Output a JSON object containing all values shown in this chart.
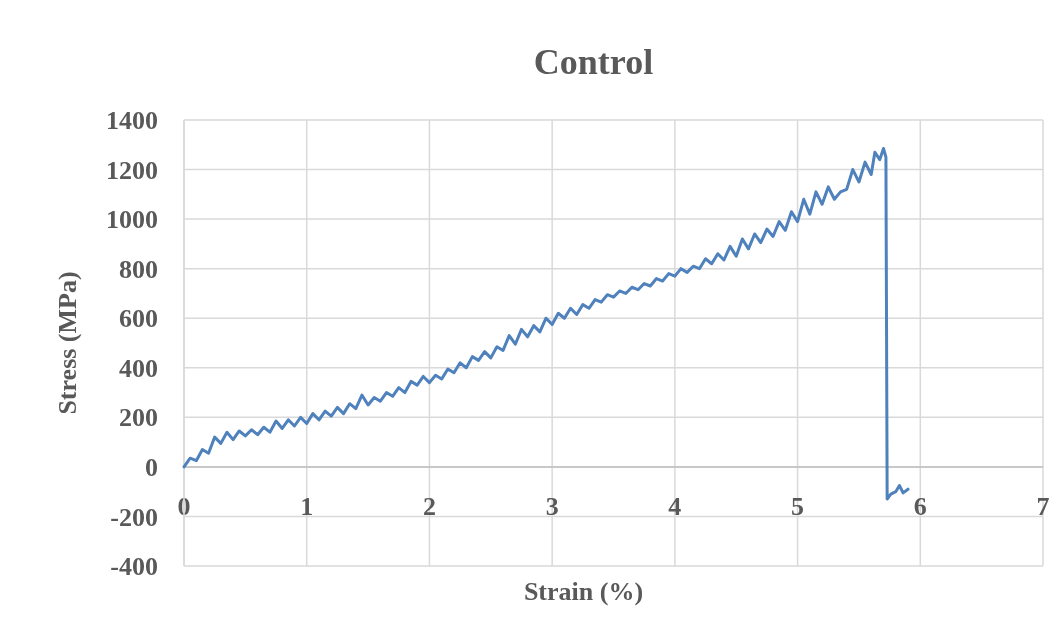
{
  "chart_data": {
    "type": "line",
    "title": "Control",
    "xlabel": "Strain (%)",
    "ylabel": "Stress (MPa)",
    "xlim": [
      0,
      7
    ],
    "xticks": [
      0,
      1,
      2,
      3,
      4,
      5,
      6,
      7
    ],
    "ylim": [
      -400,
      1400
    ],
    "yticks": [
      -400,
      -200,
      0,
      200,
      400,
      600,
      800,
      1000,
      1200,
      1400
    ],
    "grid": true,
    "line_style": "solid",
    "series": [
      {
        "color": "#4f81bd",
        "x": [
          0,
          0.05,
          0.1,
          0.15,
          0.2,
          0.25,
          0.3,
          0.35,
          0.4,
          0.45,
          0.5,
          0.55,
          0.6,
          0.65,
          0.7,
          0.75,
          0.8,
          0.85,
          0.9,
          0.95,
          1.0,
          1.05,
          1.1,
          1.15,
          1.2,
          1.25,
          1.3,
          1.35,
          1.4,
          1.45,
          1.5,
          1.55,
          1.6,
          1.65,
          1.7,
          1.75,
          1.8,
          1.85,
          1.9,
          1.95,
          2.0,
          2.05,
          2.1,
          2.15,
          2.2,
          2.25,
          2.3,
          2.35,
          2.4,
          2.45,
          2.5,
          2.55,
          2.6,
          2.65,
          2.7,
          2.75,
          2.8,
          2.85,
          2.9,
          2.95,
          3.0,
          3.05,
          3.1,
          3.15,
          3.2,
          3.25,
          3.3,
          3.35,
          3.4,
          3.45,
          3.5,
          3.55,
          3.6,
          3.65,
          3.7,
          3.75,
          3.8,
          3.85,
          3.9,
          3.95,
          4.0,
          4.05,
          4.1,
          4.15,
          4.2,
          4.25,
          4.3,
          4.35,
          4.4,
          4.45,
          4.5,
          4.55,
          4.6,
          4.65,
          4.7,
          4.75,
          4.8,
          4.85,
          4.9,
          4.95,
          5.0,
          5.05,
          5.1,
          5.15,
          5.2,
          5.25,
          5.3,
          5.35,
          5.4,
          5.45,
          5.5,
          5.55,
          5.6,
          5.63,
          5.67,
          5.7,
          5.72,
          5.73,
          5.76,
          5.8,
          5.83,
          5.86,
          5.9
        ],
        "values": [
          0,
          35,
          25,
          70,
          55,
          120,
          95,
          140,
          110,
          145,
          125,
          150,
          130,
          160,
          140,
          185,
          155,
          190,
          165,
          200,
          175,
          215,
          190,
          225,
          205,
          240,
          215,
          255,
          235,
          290,
          250,
          280,
          265,
          300,
          285,
          320,
          300,
          345,
          330,
          365,
          340,
          370,
          355,
          395,
          380,
          420,
          400,
          445,
          430,
          465,
          440,
          485,
          470,
          530,
          495,
          555,
          525,
          570,
          545,
          600,
          575,
          620,
          600,
          640,
          615,
          655,
          640,
          675,
          665,
          695,
          685,
          710,
          700,
          725,
          715,
          740,
          730,
          760,
          750,
          780,
          770,
          800,
          785,
          810,
          800,
          840,
          820,
          860,
          835,
          890,
          850,
          920,
          880,
          940,
          905,
          960,
          930,
          990,
          955,
          1030,
          990,
          1080,
          1020,
          1110,
          1060,
          1130,
          1080,
          1110,
          1120,
          1200,
          1150,
          1230,
          1180,
          1270,
          1240,
          1285,
          1250,
          -130,
          -110,
          -100,
          -75,
          -105,
          -90
        ]
      }
    ]
  }
}
